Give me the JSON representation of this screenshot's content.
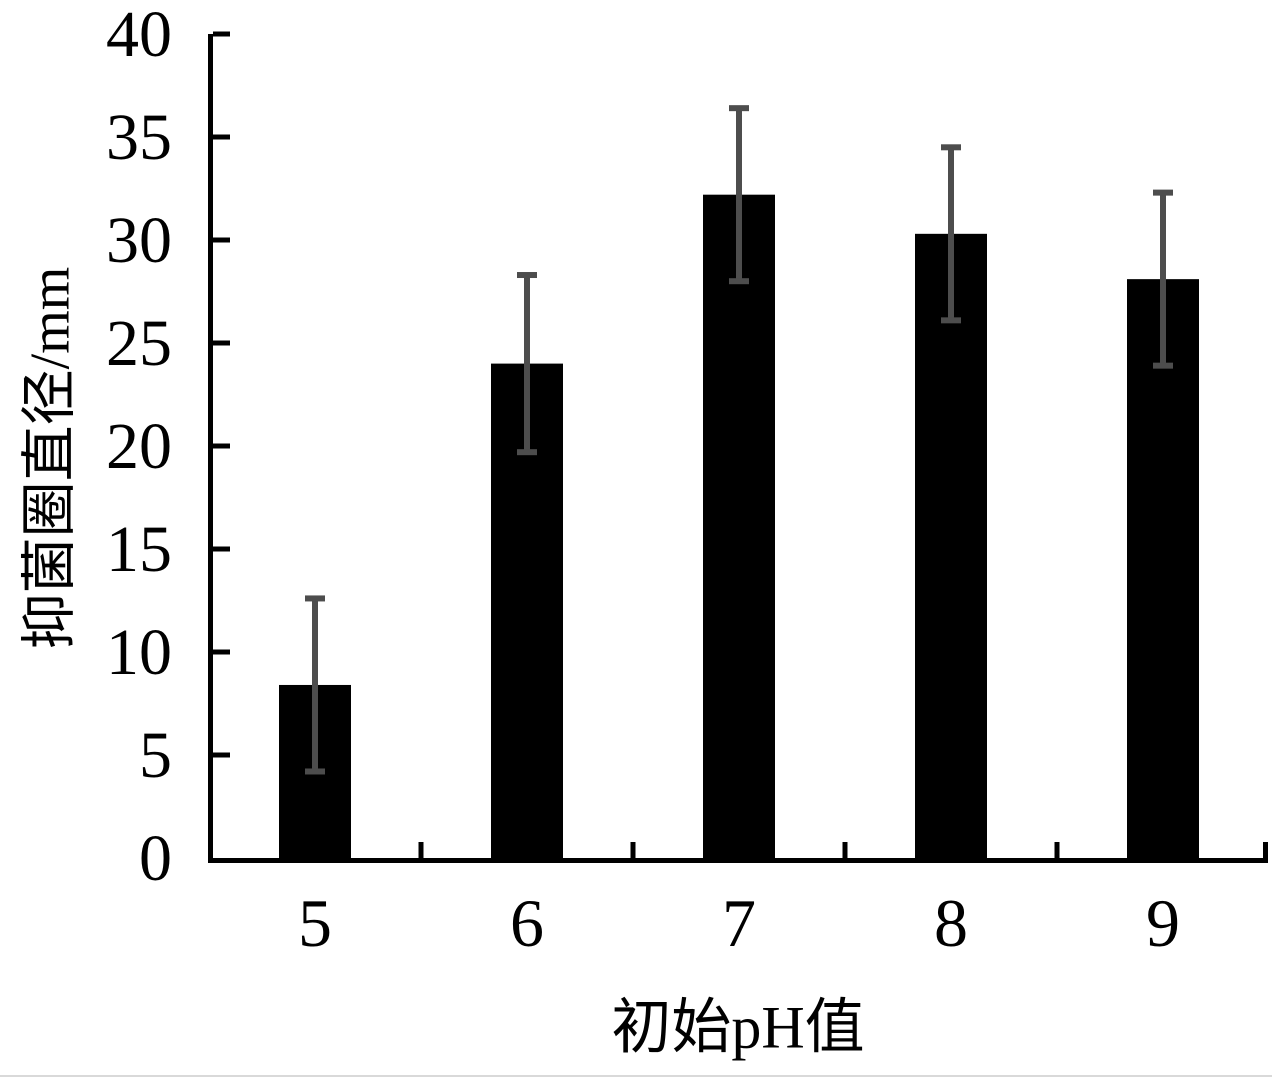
{
  "figure": {
    "background_color": "#ffffff",
    "bottom_divider_color": "#d9d9d9"
  },
  "chart_data": {
    "type": "bar",
    "title": "",
    "xlabel": "初始pH值",
    "ylabel": "抑菌圈直径/mm",
    "categories": [
      "5",
      "6",
      "7",
      "8",
      "9"
    ],
    "series": [
      {
        "name": "抑菌圈直径",
        "values": [
          8.4,
          24.0,
          32.2,
          30.3,
          28.1
        ],
        "error_bars": [
          4.2,
          4.3,
          4.2,
          4.2,
          4.2
        ]
      }
    ],
    "ylim": [
      0,
      40
    ],
    "yticks": [
      0,
      5,
      10,
      15,
      20,
      25,
      30,
      35,
      40
    ],
    "grid": false,
    "legend_position": "none",
    "bar_color": "#000000",
    "error_bar_color": "#4d4d4d",
    "axis_color": "#000000",
    "tick_direction": "in"
  }
}
